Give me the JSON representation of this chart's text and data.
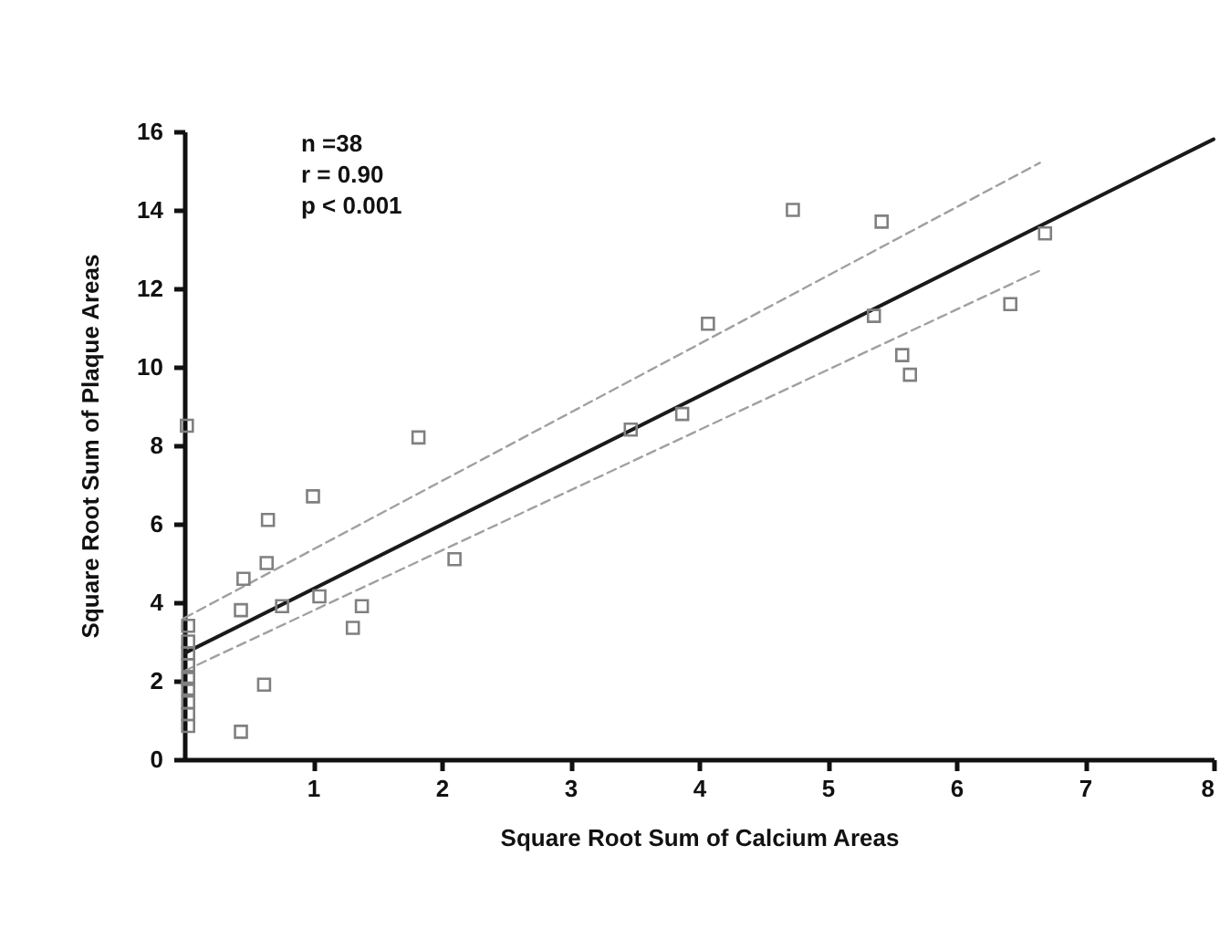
{
  "chart_data": {
    "type": "scatter",
    "xlabel": "Square Root Sum of Calcium Areas",
    "ylabel": "Square Root Sum of Plaque Areas",
    "annotations": [
      "n =38",
      "r = 0.90",
      "p < 0.001"
    ],
    "xlim": [
      0,
      8
    ],
    "ylim": [
      0,
      16
    ],
    "xticks": [
      1,
      2,
      3,
      4,
      5,
      6,
      7,
      8
    ],
    "yticks": [
      0,
      2,
      4,
      6,
      8,
      10,
      12,
      14,
      16
    ],
    "grid": false,
    "series": [
      {
        "marker": "square",
        "color": "#808080",
        "x": [
          0.02,
          1.82,
          1.0,
          0.65,
          0.64,
          0.46,
          0.44,
          0.76,
          1.05,
          1.38,
          1.31,
          2.1,
          0.62,
          0.44,
          4.73,
          5.42,
          4.07,
          5.36,
          5.58,
          5.64,
          6.42,
          6.69,
          3.87,
          3.47,
          0.03,
          0.03,
          0.03,
          0.03,
          0.03,
          0.03,
          0.03,
          0.03,
          0.03
        ],
        "values": [
          8.5,
          8.2,
          6.7,
          6.1,
          5.0,
          4.6,
          3.8,
          3.9,
          4.15,
          3.9,
          3.35,
          5.1,
          1.9,
          0.7,
          14.0,
          13.7,
          11.1,
          11.3,
          10.3,
          9.8,
          11.6,
          13.4,
          8.8,
          8.4,
          3.4,
          3.0,
          2.7,
          2.4,
          2.05,
          1.8,
          1.45,
          1.15,
          0.85
        ]
      },
      {
        "type": "line",
        "color": "#1a1a1a",
        "line_style": "solid",
        "x": [
          0,
          8
        ],
        "values": [
          2.7,
          15.8
        ]
      },
      {
        "type": "line",
        "color": "#a0a0a0",
        "line_style": "dashed",
        "x": [
          0,
          6.65
        ],
        "values": [
          3.6,
          15.2
        ]
      },
      {
        "type": "line",
        "color": "#a0a0a0",
        "line_style": "dashed",
        "x": [
          0,
          6.68
        ],
        "values": [
          2.25,
          12.5
        ]
      }
    ]
  }
}
